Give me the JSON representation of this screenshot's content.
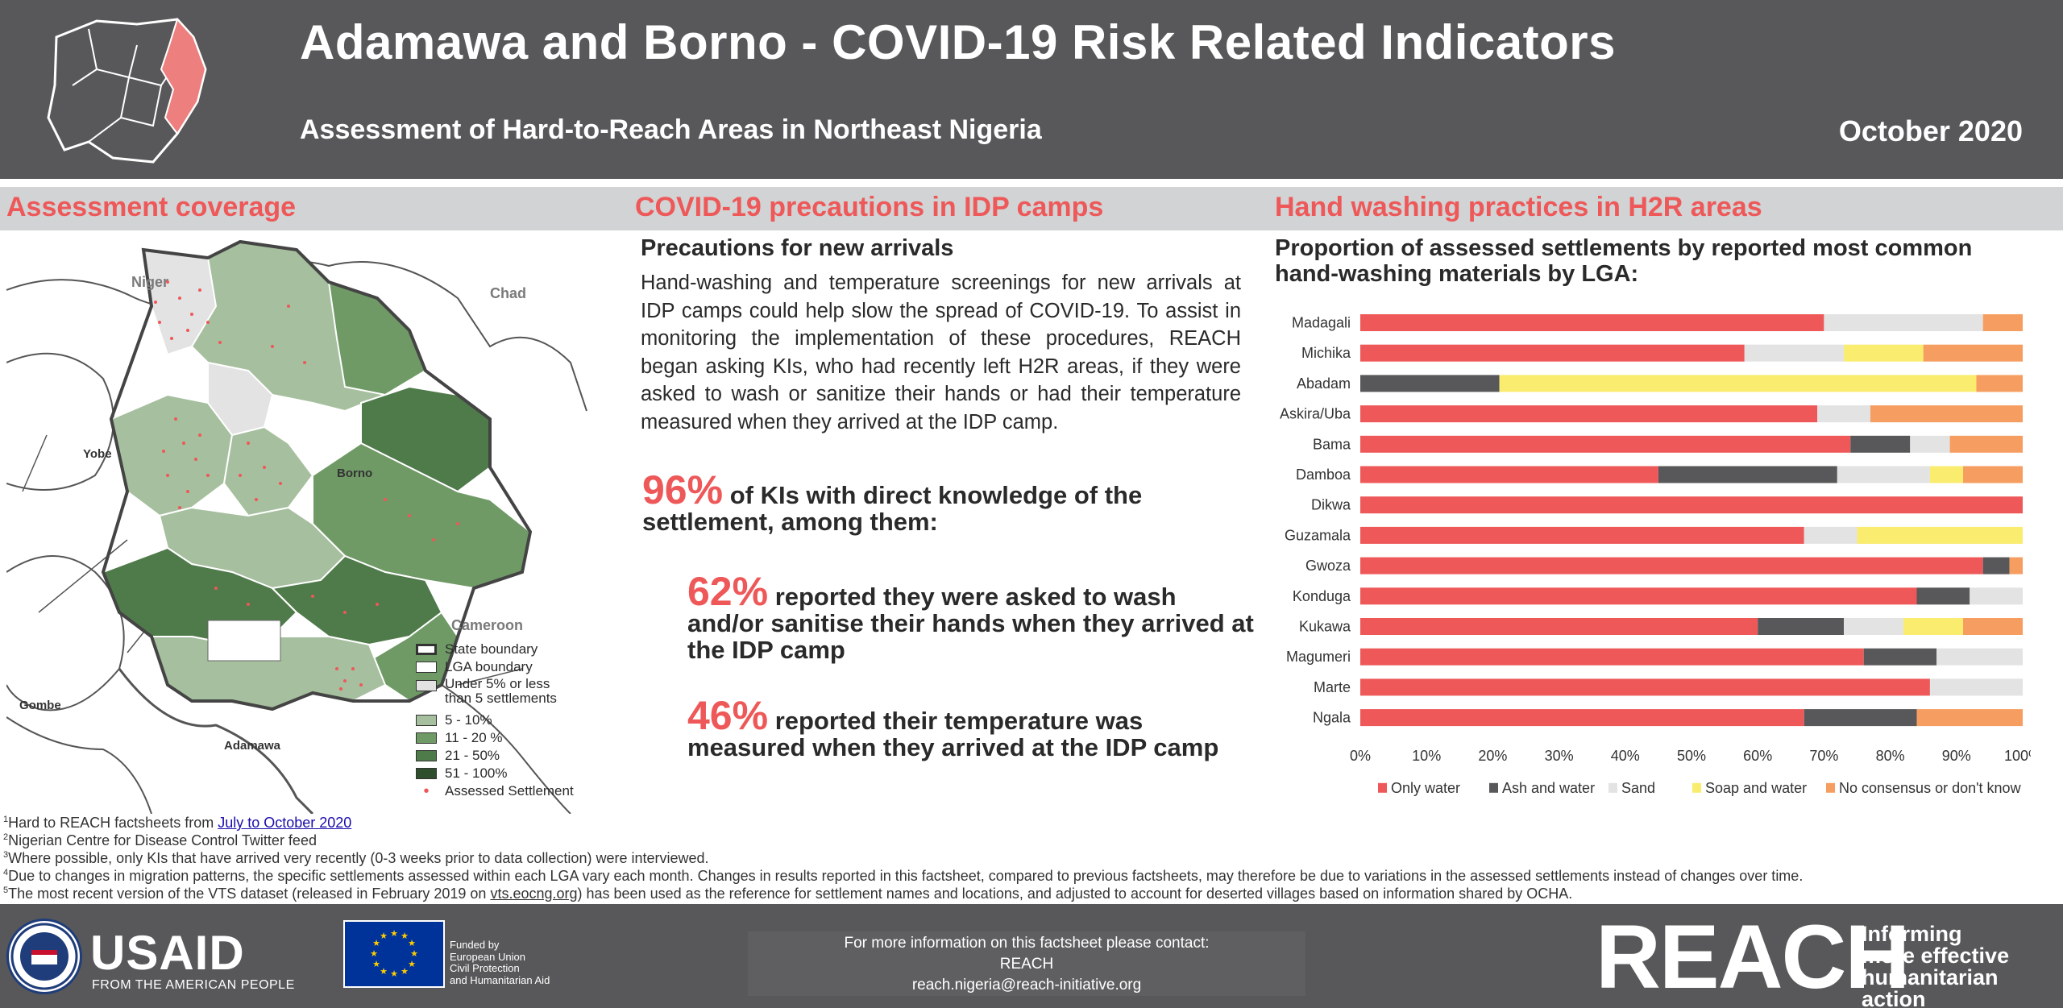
{
  "header": {
    "title": "Adamawa and Borno - COVID-19 Risk Related Indicators",
    "subtitle": "Assessment of Hard-to-Reach Areas in Northeast Nigeria",
    "date": "October 2020"
  },
  "sections": {
    "coverage": "Assessment coverage",
    "precautions": "COVID-19 precautions in IDP camps",
    "handwashing": "Hand washing practices in H2R areas"
  },
  "map": {
    "labels": {
      "niger": "Niger",
      "chad": "Chad",
      "yobe": "Yobe",
      "borno": "Borno",
      "cameroon": "Cameroon",
      "gombe": "Gombe",
      "adamawa": "Adamawa"
    },
    "legend": [
      {
        "label": "State boundary",
        "color": "#ffffff",
        "key": "state"
      },
      {
        "label": "LGA boundary",
        "color": "#ffffff",
        "key": "lga"
      },
      {
        "label": "Under 5% or less",
        "label2": "than 5 settlements",
        "color": "#e3e3e3",
        "key": "under5"
      },
      {
        "label": "5 - 10%",
        "color": "#a6bf9e",
        "key": "p5"
      },
      {
        "label": "11 - 20 %",
        "color": "#6f9a66",
        "key": "p11"
      },
      {
        "label": "21 - 50%",
        "color": "#4f7a4a",
        "key": "p21"
      },
      {
        "label": "51 - 100%",
        "color": "#2f4f2c",
        "key": "p51"
      },
      {
        "label": "Assessed Settlement",
        "color": "#ee5859",
        "key": "dot"
      }
    ]
  },
  "precautions": {
    "heading": "Precautions for new arrivals",
    "body": "Hand-washing and temperature screenings for new arrivals at IDP camps could help slow the spread of COVID-19. To assist in monitoring the implementation of these procedures, REACH began asking KIs, who had recently left H2R areas, if they were asked to wash or sanitize their hands or had their temperature measured when they arrived at the IDP camp.",
    "stat1": {
      "pct": "96%",
      "text": " of KIs with direct knowledge of the settlement, among them:"
    },
    "stat2": {
      "pct": "62%",
      "text": " reported they were asked to wash and/or sanitise their hands when they arrived at the IDP camp"
    },
    "stat3": {
      "pct": "46%",
      "text": " reported their temperature was measured when they arrived at the IDP camp"
    }
  },
  "chart_heading": "Proportion of assessed settlements by reported most common hand-washing materials by LGA:",
  "chart_data": {
    "type": "bar",
    "orientation": "horizontal",
    "stacked": true,
    "categories": [
      "Madagali",
      "Michika",
      "Abadam",
      "Askira/Uba",
      "Bama",
      "Damboa",
      "Dikwa",
      "Guzamala",
      "Gwoza",
      "Konduga",
      "Kukawa",
      "Magumeri",
      "Marte",
      "Ngala"
    ],
    "series": [
      {
        "name": "Only water",
        "color": "#ee5859",
        "values": [
          70,
          58,
          0,
          69,
          74,
          45,
          100,
          67,
          94,
          84,
          60,
          76,
          86,
          67
        ]
      },
      {
        "name": "Ash and water",
        "color": "#58585a",
        "values": [
          0,
          0,
          21,
          0,
          9,
          27,
          0,
          0,
          4,
          8,
          13,
          11,
          0,
          17
        ]
      },
      {
        "name": "Sand",
        "color": "#e3e3e3",
        "values": [
          24,
          15,
          0,
          8,
          6,
          14,
          0,
          8,
          0,
          8,
          9,
          13,
          14,
          0
        ]
      },
      {
        "name": "Soap and water",
        "color": "#f9ec6f",
        "values": [
          0,
          12,
          72,
          0,
          0,
          5,
          0,
          25,
          0,
          0,
          9,
          0,
          0,
          0
        ]
      },
      {
        "name": "No consensus or don't know",
        "color": "#f69e61",
        "values": [
          6,
          15,
          7,
          23,
          11,
          9,
          0,
          0,
          2,
          0,
          9,
          0,
          0,
          16
        ]
      }
    ],
    "xticks": [
      "0%",
      "10%",
      "20%",
      "30%",
      "40%",
      "50%",
      "60%",
      "70%",
      "80%",
      "90%",
      "100%"
    ],
    "xlim": [
      0,
      100
    ],
    "grid": false,
    "legend_position": "bottom"
  },
  "footnotes": {
    "fn1_pre": "Hard to REACH factsheets from ",
    "fn1_link": "July to October 2020",
    "fn2": "Nigerian Centre for Disease Control Twitter feed",
    "fn3": "Where possible, only KIs that have arrived very recently (0-3 weeks prior to data collection) were interviewed.",
    "fn4": "Due to changes in migration patterns, the specific settlements assessed within each LGA vary each month. Changes in results reported in this factsheet, compared to previous factsheets, may therefore be due to variations in the assessed settlements instead of changes over time.",
    "fn5_pre": "The most recent version of the VTS dataset (released in February 2019 on ",
    "fn5_link": "vts.eocng.org",
    "fn5_post": ") has been used as the reference for settlement names and locations, and adjusted to account for deserted villages based on information shared by OCHA."
  },
  "footer": {
    "usaid": "USAID",
    "usaid_tag": "FROM THE AMERICAN PEOPLE",
    "eu_lines": [
      "Funded by",
      "European Union",
      "Civil Protection",
      "and Humanitarian Aid"
    ],
    "contact_line1": "For more information on this factsheet please contact:",
    "contact_line2": "REACH",
    "contact_line3": "reach.nigeria@reach-initiative.org",
    "reach": "REACH",
    "reach_tag": [
      "Informing",
      "more effective",
      "humanitarian action"
    ]
  }
}
